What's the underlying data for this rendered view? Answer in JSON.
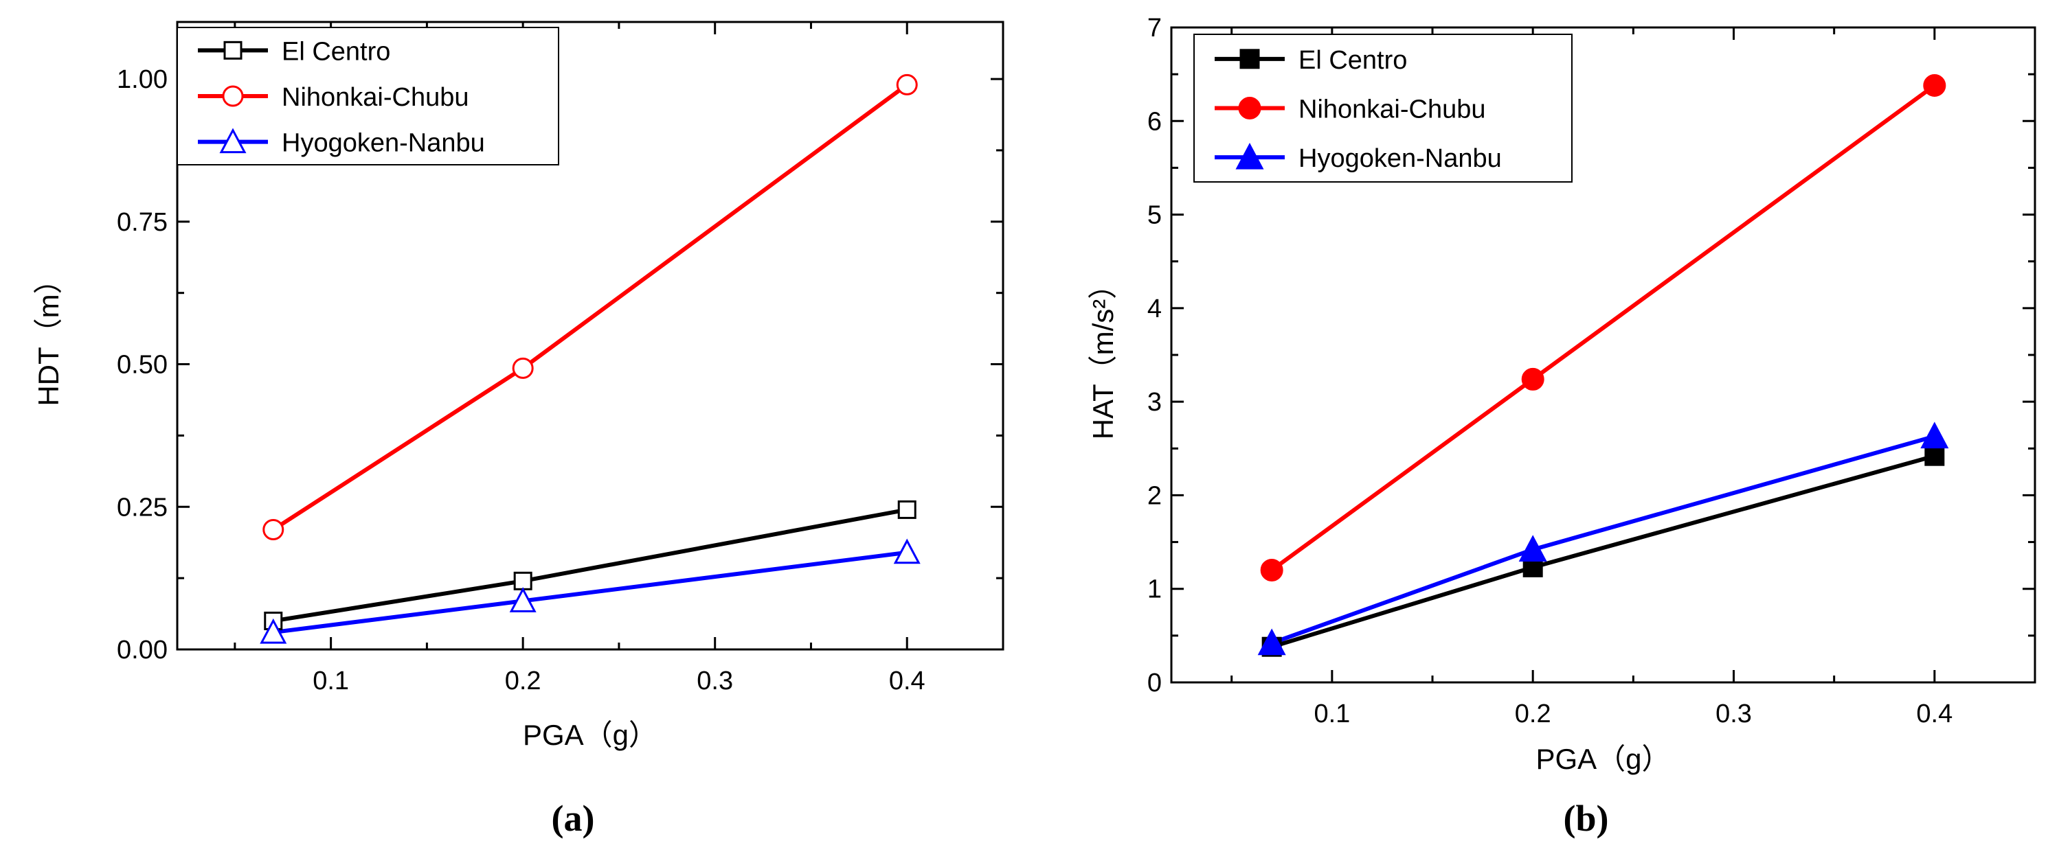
{
  "chart_data": [
    {
      "panel_label": "(a)",
      "type": "line",
      "title": "",
      "xlabel": "PGA（g）",
      "ylabel": "HDT（m）",
      "xlim": [
        0.02,
        0.45
      ],
      "ylim": [
        0.0,
        1.1
      ],
      "x_ticks": [
        0.1,
        0.2,
        0.3,
        0.4
      ],
      "x_tick_labels": [
        "0.1",
        "0.2",
        "0.3",
        "0.4"
      ],
      "y_ticks": [
        0.0,
        0.25,
        0.5,
        0.75,
        1.0
      ],
      "y_tick_labels": [
        "0.00",
        "0.25",
        "0.50",
        "0.75",
        "1.00"
      ],
      "grid": false,
      "legend_position": "top-left",
      "marker_fill": "open",
      "x": [
        0.07,
        0.2,
        0.4
      ],
      "series": [
        {
          "name": "El Centro",
          "values": [
            0.05,
            0.12,
            0.245
          ],
          "color": "#000000",
          "marker": "square"
        },
        {
          "name": "Nihonkai-Chubu",
          "values": [
            0.21,
            0.493,
            0.99
          ],
          "color": "#ff0000",
          "marker": "circle"
        },
        {
          "name": "Hyogoken-Nanbu",
          "values": [
            0.03,
            0.085,
            0.17
          ],
          "color": "#0000ff",
          "marker": "triangle"
        }
      ]
    },
    {
      "panel_label": "(b)",
      "type": "line",
      "title": "",
      "xlabel": "PGA（g）",
      "ylabel": "HAT（m/s²）",
      "xlim": [
        0.02,
        0.45
      ],
      "ylim": [
        0,
        7
      ],
      "x_ticks": [
        0.1,
        0.2,
        0.3,
        0.4
      ],
      "x_tick_labels": [
        "0.1",
        "0.2",
        "0.3",
        "0.4"
      ],
      "y_ticks": [
        0,
        1,
        2,
        3,
        4,
        5,
        6,
        7
      ],
      "y_tick_labels": [
        "0",
        "1",
        "2",
        "3",
        "4",
        "5",
        "6",
        "7"
      ],
      "grid": false,
      "legend_position": "top-left",
      "marker_fill": "filled",
      "x": [
        0.07,
        0.2,
        0.4
      ],
      "series": [
        {
          "name": "El Centro",
          "values": [
            0.38,
            1.23,
            2.42
          ],
          "color": "#000000",
          "marker": "square"
        },
        {
          "name": "Nihonkai-Chubu",
          "values": [
            1.2,
            3.24,
            6.38
          ],
          "color": "#ff0000",
          "marker": "circle"
        },
        {
          "name": "Hyogoken-Nanbu",
          "values": [
            0.42,
            1.42,
            2.63
          ],
          "color": "#0000ff",
          "marker": "triangle"
        }
      ]
    }
  ]
}
